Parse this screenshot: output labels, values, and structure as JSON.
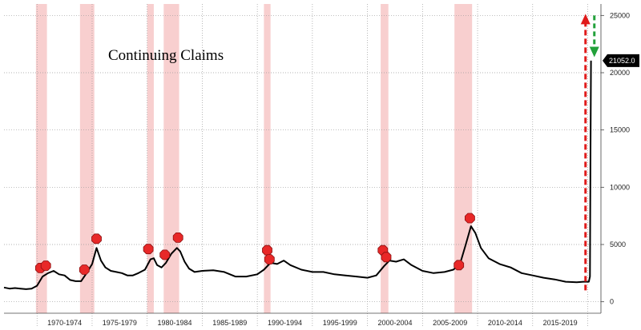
{
  "chart_data": {
    "type": "line",
    "title": "Continuing Claims",
    "xlabel": "",
    "ylabel": "",
    "xlim": [
      1967.0,
      2021.2
    ],
    "ylim": [
      -1000,
      26000
    ],
    "y_ticks": [
      0,
      5000,
      10000,
      15000,
      20000,
      25000
    ],
    "x_period_labels": [
      {
        "label": "1970-1974",
        "center": 1972.5
      },
      {
        "label": "1975-1979",
        "center": 1977.5
      },
      {
        "label": "1980-1984",
        "center": 1982.5
      },
      {
        "label": "1985-1989",
        "center": 1987.5
      },
      {
        "label": "1990-1994",
        "center": 1992.5
      },
      {
        "label": "1995-1999",
        "center": 1997.5
      },
      {
        "label": "2000-2004",
        "center": 2002.5
      },
      {
        "label": "2005-2009",
        "center": 2007.5
      },
      {
        "label": "2010-2014",
        "center": 2012.5
      },
      {
        "label": "2015-2019",
        "center": 2017.5
      }
    ],
    "x_separators": [
      1970,
      1975,
      1980,
      1985,
      1990,
      1995,
      2000,
      2005,
      2010,
      2015,
      2020
    ],
    "recessions": [
      {
        "start": 1969.9,
        "end": 1970.9
      },
      {
        "start": 1973.9,
        "end": 1975.2
      },
      {
        "start": 1980.0,
        "end": 1980.6
      },
      {
        "start": 1981.5,
        "end": 1982.9
      },
      {
        "start": 1990.6,
        "end": 1991.2
      },
      {
        "start": 2001.2,
        "end": 2001.9
      },
      {
        "start": 2007.9,
        "end": 2009.5
      }
    ],
    "series": [
      {
        "color": "#000000",
        "points": [
          [
            1967.0,
            1250
          ],
          [
            1967.5,
            1150
          ],
          [
            1968.0,
            1200
          ],
          [
            1968.5,
            1150
          ],
          [
            1969.0,
            1100
          ],
          [
            1969.5,
            1150
          ],
          [
            1970.0,
            1400
          ],
          [
            1970.5,
            2200
          ],
          [
            1971.0,
            2500
          ],
          [
            1971.5,
            2700
          ],
          [
            1972.0,
            2400
          ],
          [
            1972.5,
            2300
          ],
          [
            1973.0,
            1900
          ],
          [
            1973.5,
            1800
          ],
          [
            1974.0,
            1800
          ],
          [
            1974.5,
            2500
          ],
          [
            1975.0,
            3300
          ],
          [
            1975.4,
            4700
          ],
          [
            1975.8,
            3600
          ],
          [
            1976.2,
            3000
          ],
          [
            1976.7,
            2700
          ],
          [
            1977.2,
            2600
          ],
          [
            1977.7,
            2500
          ],
          [
            1978.2,
            2300
          ],
          [
            1978.7,
            2300
          ],
          [
            1979.2,
            2500
          ],
          [
            1979.8,
            2800
          ],
          [
            1980.3,
            3700
          ],
          [
            1980.6,
            3800
          ],
          [
            1980.9,
            3200
          ],
          [
            1981.3,
            3000
          ],
          [
            1981.7,
            3400
          ],
          [
            1982.2,
            4200
          ],
          [
            1982.7,
            4700
          ],
          [
            1983.0,
            4400
          ],
          [
            1983.4,
            3500
          ],
          [
            1983.8,
            2900
          ],
          [
            1984.3,
            2600
          ],
          [
            1985.0,
            2700
          ],
          [
            1986.0,
            2750
          ],
          [
            1987.0,
            2600
          ],
          [
            1988.0,
            2200
          ],
          [
            1989.0,
            2200
          ],
          [
            1990.0,
            2400
          ],
          [
            1990.6,
            2800
          ],
          [
            1991.2,
            3400
          ],
          [
            1991.8,
            3300
          ],
          [
            1992.4,
            3600
          ],
          [
            1993.0,
            3200
          ],
          [
            1994.0,
            2800
          ],
          [
            1995.0,
            2600
          ],
          [
            1996.0,
            2600
          ],
          [
            1997.0,
            2400
          ],
          [
            1998.0,
            2300
          ],
          [
            1999.0,
            2200
          ],
          [
            2000.0,
            2100
          ],
          [
            2000.8,
            2300
          ],
          [
            2001.5,
            3100
          ],
          [
            2002.0,
            3600
          ],
          [
            2002.6,
            3500
          ],
          [
            2003.3,
            3700
          ],
          [
            2004.0,
            3200
          ],
          [
            2005.0,
            2700
          ],
          [
            2006.0,
            2500
          ],
          [
            2007.0,
            2600
          ],
          [
            2007.8,
            2800
          ],
          [
            2008.4,
            3300
          ],
          [
            2008.9,
            4900
          ],
          [
            2009.4,
            6600
          ],
          [
            2009.8,
            6000
          ],
          [
            2010.3,
            4700
          ],
          [
            2011.0,
            3800
          ],
          [
            2012.0,
            3300
          ],
          [
            2013.0,
            3000
          ],
          [
            2014.0,
            2500
          ],
          [
            2015.0,
            2300
          ],
          [
            2016.0,
            2100
          ],
          [
            2017.0,
            1950
          ],
          [
            2018.0,
            1750
          ],
          [
            2019.0,
            1700
          ],
          [
            2019.6,
            1750
          ],
          [
            2020.1,
            1750
          ],
          [
            2020.2,
            2200
          ],
          [
            2020.25,
            12000
          ],
          [
            2020.3,
            21052
          ]
        ]
      }
    ],
    "last_value": {
      "label": "21052.0",
      "value": 21052
    },
    "annotations": {
      "up_arrow": {
        "color": "#e01b1b",
        "x": 2019.8,
        "from": 1000,
        "to": 25000
      },
      "down_arrow": {
        "color": "#22a13a",
        "x": 2020.6,
        "from": 25000,
        "to": 21500
      },
      "markers": [
        {
          "x": 1970.3,
          "y": 2950
        },
        {
          "x": 1970.8,
          "y": 3150
        },
        {
          "x": 1974.3,
          "y": 2800
        },
        {
          "x": 1975.4,
          "y": 5500
        },
        {
          "x": 1980.1,
          "y": 4600
        },
        {
          "x": 1981.6,
          "y": 4100
        },
        {
          "x": 1982.8,
          "y": 5600
        },
        {
          "x": 1990.9,
          "y": 4500
        },
        {
          "x": 1991.1,
          "y": 3700
        },
        {
          "x": 2001.4,
          "y": 4500
        },
        {
          "x": 2001.7,
          "y": 3900
        },
        {
          "x": 2008.3,
          "y": 3200
        },
        {
          "x": 2009.3,
          "y": 7300
        }
      ]
    },
    "grid": true,
    "legend": "none",
    "colors": {
      "recession_band": "#f7c7c7",
      "marker_fill": "#e82828",
      "marker_stroke": "#8a1010",
      "line": "#000000"
    }
  }
}
